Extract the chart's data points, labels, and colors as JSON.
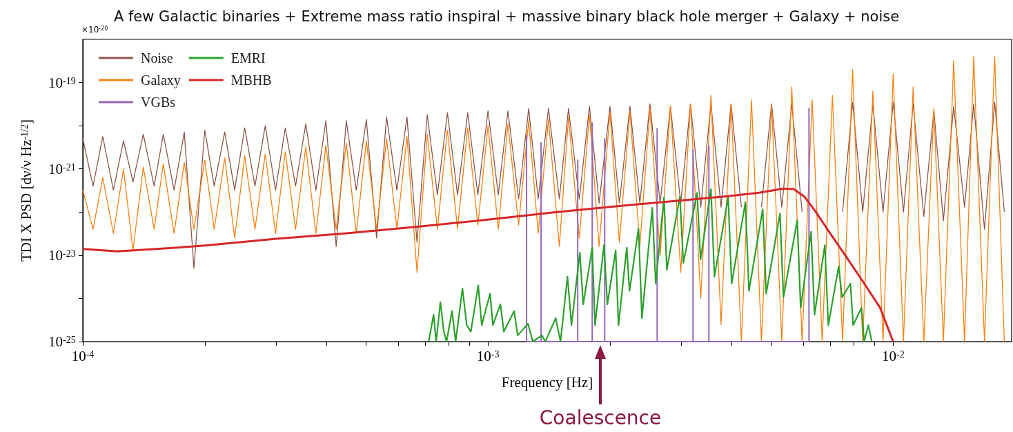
{
  "chart_data": {
    "type": "line",
    "title": "A few Galactic binaries + Extreme mass ratio inspiral + massive binary black hole merger + Galaxy + noise",
    "xlabel": "Frequency [Hz]",
    "ylabel": "TDI X PSD [dν/ν Hz$^{-1/2}$]",
    "log": "xy",
    "marker": "none",
    "legend": "top left",
    "xlim": [
      0.0001,
      0.0196
    ],
    "ylim": [
      1e-25,
      1e-18
    ],
    "xticks": [
      {
        "value": 0.0001,
        "label": "10$^{-4}$"
      },
      {
        "value": 0.0002,
        "label": null
      },
      {
        "value": 0.0003,
        "label": null
      },
      {
        "value": 0.0004,
        "label": null
      },
      {
        "value": 0.0005,
        "label": null
      },
      {
        "value": 0.0006,
        "label": null
      },
      {
        "value": 0.0007,
        "label": null
      },
      {
        "value": 0.0008,
        "label": null
      },
      {
        "value": 0.0009,
        "label": null
      },
      {
        "value": 0.001,
        "label": "10$^{-3}$"
      },
      {
        "value": 0.002,
        "label": null
      },
      {
        "value": 0.003,
        "label": null
      },
      {
        "value": 0.004,
        "label": null
      },
      {
        "value": 0.005,
        "label": null
      },
      {
        "value": 0.006,
        "label": null
      },
      {
        "value": 0.007,
        "label": null
      },
      {
        "value": 0.008,
        "label": null
      },
      {
        "value": 0.009,
        "label": null
      },
      {
        "value": 0.01,
        "label": "10$^{-2}$"
      }
    ],
    "yticks": [
      {
        "value": 1e-25,
        "label": "10$^{-25}$"
      },
      {
        "value": 1e-24,
        "label": null
      },
      {
        "value": 1e-23,
        "label": "10$^{-23}$"
      },
      {
        "value": 1e-22,
        "label": null
      },
      {
        "value": 1e-21,
        "label": "10$^{-21}$"
      },
      {
        "value": 1e-20,
        "label": null
      },
      {
        "value": 1e-19,
        "label": "10$^{-19}$"
      }
    ],
    "annotations": [
      "×10$^{-20}$",
      "Coalescence"
    ],
    "x": [
      0.0001,
      0.000106,
      0.000112,
      0.000119,
      0.000126,
      0.000133,
      0.000141,
      0.00015,
      0.000158,
      0.000168,
      0.000178,
      0.000188,
      0.0002,
      0.000211,
      0.000224,
      0.000237,
      0.000251,
      0.000266,
      0.000282,
      0.000299,
      0.000316,
      0.000335,
      0.000355,
      0.000376,
      0.000398,
      0.000422,
      0.000447,
      0.000473,
      0.000501,
      0.000531,
      0.000562,
      0.000596,
      0.000631,
      0.000668,
      0.000708,
      0.00075,
      0.000794,
      0.000841,
      0.000891,
      0.000944,
      0.001,
      0.00106,
      0.00112,
      0.00119,
      0.00126,
      0.00133,
      0.00141,
      0.0015,
      0.00158,
      0.00168,
      0.00178,
      0.00188,
      0.002,
      0.00211,
      0.00224,
      0.00237,
      0.00251,
      0.00266,
      0.00282,
      0.00299,
      0.00316,
      0.00335,
      0.00355,
      0.00376,
      0.00398,
      0.00422,
      0.00447,
      0.00473,
      0.00501,
      0.00531,
      0.00562,
      0.00596,
      0.00631,
      0.00668,
      0.00708,
      0.0075,
      0.00794,
      0.00841,
      0.00891,
      0.00944,
      0.01,
      0.0106,
      0.0112,
      0.0119,
      0.0126,
      0.0133,
      0.0141,
      0.015,
      0.0158,
      0.0168,
      0.0178,
      0.0188
    ],
    "series": [
      {
        "name": "Noise",
        "color": "#8c564b",
        "values": [
          5e-21,
          4e-22,
          5.6e-21,
          3.2e-22,
          4.5e-21,
          5e-22,
          6.3e-21,
          4e-22,
          6.3e-21,
          3.2e-22,
          7.1e-21,
          5e-24,
          7.9e-21,
          4e-22,
          7.1e-21,
          3.2e-22,
          8.9e-21,
          4e-22,
          1e-20,
          3.2e-22,
          8.9e-21,
          4e-22,
          1.1e-20,
          3.2e-22,
          1.3e-20,
          1.6e-23,
          1.3e-20,
          3.2e-22,
          1.4e-20,
          2.5e-23,
          1.6e-20,
          3.2e-22,
          1.6e-20,
          2e-23,
          1.8e-20,
          2.5e-22,
          2e-20,
          2.5e-22,
          2e-20,
          2.5e-22,
          2.2e-20,
          2.5e-22,
          2.2e-20,
          2e-22,
          2.5e-20,
          2e-22,
          2.5e-20,
          2e-22,
          2.5e-20,
          2e-22,
          2.8e-20,
          1.6e-22,
          2.8e-20,
          1.6e-22,
          2.8e-20,
          1.6e-22,
          3.2e-20,
          1.6e-22,
          2.8e-20,
          1.6e-22,
          3.2e-20,
          1.3e-22,
          3.2e-20,
          1.3e-22,
          3.2e-20,
          1.3e-22,
          null,
          1.3e-22,
          3.2e-20,
          1.3e-22,
          3.2e-20,
          1e-22,
          null,
          null,
          null,
          1e-22,
          3.5e-20,
          1e-22,
          3.2e-20,
          1e-22,
          3.5e-20,
          1e-22,
          3.2e-20,
          7.9e-23,
          2.2e-20,
          6.3e-23,
          2.8e-20,
          1.3e-22,
          3.2e-20,
          4e-23,
          3.5e-20,
          1e-22
        ]
      },
      {
        "name": "Galaxy",
        "color": "#ff7f0e",
        "values": [
          3.2e-22,
          4e-23,
          6.3e-22,
          3.2e-23,
          1e-21,
          1.3e-23,
          1.1e-21,
          4e-23,
          1.3e-21,
          3.2e-23,
          1.4e-21,
          4e-23,
          1.6e-21,
          4e-23,
          1.8e-21,
          2.5e-23,
          2e-21,
          4e-23,
          2.2e-21,
          3.2e-23,
          2.5e-21,
          4e-23,
          3.2e-21,
          3.2e-23,
          3.5e-21,
          4e-23,
          4e-21,
          3.2e-23,
          4.5e-21,
          4e-23,
          5e-21,
          4e-23,
          5.6e-21,
          4e-24,
          6.3e-21,
          4e-23,
          7.9e-21,
          4e-23,
          8.9e-21,
          5e-23,
          1e-20,
          4e-23,
          1.1e-20,
          5e-23,
          1.3e-20,
          3.2e-23,
          1.4e-20,
          1.6e-23,
          1.6e-20,
          2.5e-23,
          1.8e-20,
          1.6e-23,
          2e-20,
          2e-23,
          2.2e-20,
          1.6e-23,
          2.5e-20,
          1e-23,
          2.8e-20,
          4e-24,
          3.2e-20,
          1e-24,
          5e-20,
          2.5e-25,
          3.2e-20,
          1e-25,
          4e-20,
          1e-25,
          3.2e-20,
          1e-25,
          7.9e-20,
          1e-25,
          4e-20,
          1e-25,
          5e-20,
          1e-25,
          2e-19,
          1e-25,
          6.3e-20,
          1e-25,
          1.6e-19,
          1e-25,
          7.9e-20,
          1e-25,
          2.5e-20,
          1e-25,
          3.2e-19,
          1e-25,
          4e-19,
          1e-25,
          4e-19,
          1e-25
        ]
      },
      {
        "name": "VGBs",
        "color": "#9467bd",
        "x": [
          0.001245,
          0.001245,
          0.001245,
          0.001352,
          0.001352,
          0.001352,
          0.001665,
          0.001665,
          0.001665,
          0.001808,
          0.001808,
          0.001808,
          0.001941,
          0.001941,
          0.001941,
          0.002615,
          0.002615,
          0.002615,
          0.003206,
          0.003206,
          0.003206,
          0.003509,
          0.003509,
          0.003509,
          0.006197,
          0.006197,
          0.006197
        ],
        "values": [
          1e-25,
          5.9e-21,
          1e-25,
          1e-25,
          4e-21,
          1e-25,
          1e-25,
          1.6e-21,
          1e-25,
          1e-25,
          1.15e-20,
          1e-25,
          1e-25,
          5e-21,
          1e-25,
          1e-25,
          8.5e-21,
          1e-25,
          1e-25,
          2.8e-21,
          1e-25,
          1e-25,
          3.4e-21,
          1e-25,
          1e-25,
          2.5e-20,
          1e-25
        ]
      },
      {
        "name": "EMRI",
        "color": "#2ca02c",
        "x": [
          0.000714,
          0.000734,
          0.000745,
          0.000763,
          0.000778,
          0.00079,
          0.000815,
          0.000832,
          0.000865,
          0.000886,
          0.000907,
          0.000946,
          0.000965,
          0.001012,
          0.001028,
          0.001073,
          0.001094,
          0.00116,
          0.001184,
          0.001255,
          0.00129,
          0.001358,
          0.001385,
          0.001469,
          0.00151,
          0.001571,
          0.001607,
          0.001685,
          0.001718,
          0.001808,
          0.001837,
          0.001933,
          0.001971,
          0.002066,
          0.002099,
          0.0022,
          0.002235,
          0.002352,
          0.002398,
          0.002544,
          0.002594,
          0.002719,
          0.002762,
          0.002976,
          0.003035,
          0.003281,
          0.003346,
          0.00355,
          0.003621,
          0.003915,
          0.003993,
          0.004318,
          0.004406,
          0.004764,
          0.004859,
          0.005255,
          0.005359,
          0.005797,
          0.005911,
          0.006271,
          0.006395,
          0.006782,
          0.006917,
          0.007335,
          0.00748,
          0.007842,
          0.007966,
          0.008349,
          0.008481,
          0.008683,
          0.008855
        ],
        "values": [
          1e-25,
          4.2e-25,
          1e-25,
          8.2e-25,
          1.7e-25,
          1e-25,
          5.1e-25,
          1e-25,
          1.7e-24,
          2.4e-25,
          1.7e-25,
          2e-24,
          2.4e-25,
          1.3e-24,
          2.4e-25,
          7.3e-25,
          1.7e-25,
          5.1e-25,
          1.4e-25,
          2.6e-25,
          1e-25,
          1.4e-25,
          1e-25,
          3.5e-25,
          1e-25,
          3.2e-24,
          2.4e-25,
          1.15e-23,
          7.3e-25,
          1.5e-23,
          2.4e-25,
          1.7e-23,
          7.3e-25,
          1.3e-23,
          2.4e-25,
          1.5e-23,
          1.5e-24,
          4.2e-23,
          3.5e-25,
          1.25e-22,
          2.2e-24,
          2.2e-22,
          4.6e-24,
          2.3e-22,
          6.6e-24,
          2.8e-22,
          8e-24,
          3.4e-22,
          3.2e-24,
          2.2e-22,
          2.2e-24,
          1.7e-22,
          1.5e-24,
          1.16e-22,
          1.3e-24,
          9.3e-23,
          1.06e-24,
          6.5e-23,
          6.1e-25,
          3.5e-23,
          4.2e-25,
          1.7e-23,
          2.4e-25,
          5.5e-24,
          1.06e-24,
          2.2e-24,
          2.4e-25,
          6.1e-25,
          1e-25,
          2.4e-25,
          1e-25
        ]
      },
      {
        "name": "MBHB",
        "color": "#d62728",
        "x": [
          0.0001,
          0.0001217,
          0.0001665,
          0.0002026,
          0.0003,
          0.000444,
          0.000657,
          0.000973,
          0.00144,
          0.00213,
          0.00316,
          0.00384,
          0.00467,
          0.00536,
          0.00568,
          0.00603,
          0.00639,
          0.00692,
          0.00763,
          0.00841,
          0.00928,
          0.01
        ],
        "values": [
          1.4e-23,
          1.23e-23,
          1.48e-23,
          1.7e-23,
          2.4e-23,
          3.2e-23,
          4.5e-23,
          6.5e-23,
          9.7e-23,
          1.4e-22,
          1.95e-22,
          2.3e-22,
          2.8e-22,
          3.5e-22,
          3.4e-22,
          2.3e-22,
          1.12e-22,
          3.7e-23,
          9.6e-24,
          2.5e-24,
          6.1e-25,
          1e-25
        ]
      }
    ]
  }
}
